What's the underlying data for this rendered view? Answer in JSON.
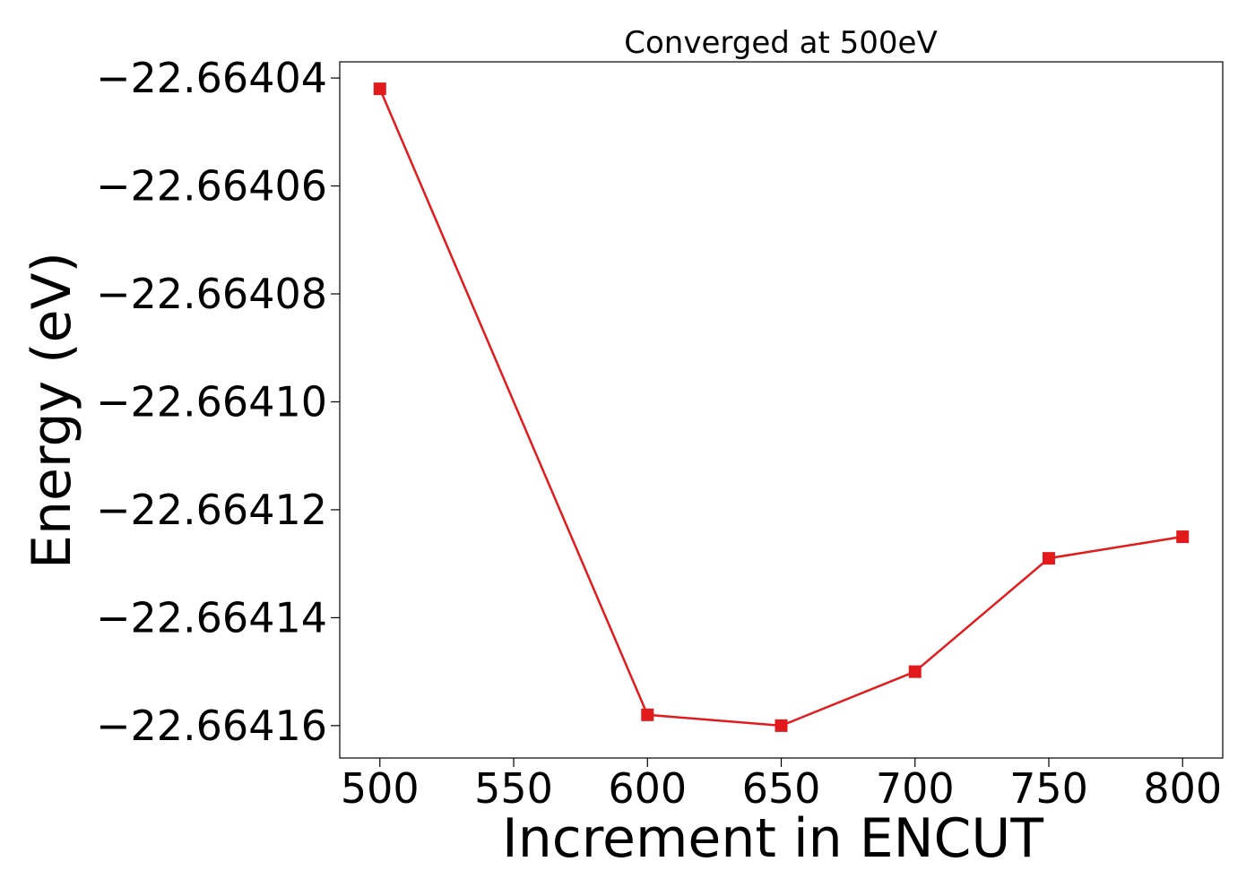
{
  "chart_data": {
    "type": "line",
    "title": "Converged at 500eV",
    "xlabel": "Increment in ENCUT",
    "ylabel": "Energy (eV)",
    "x": [
      500,
      600,
      650,
      700,
      750,
      800
    ],
    "series": [
      {
        "color": "#e31a1c",
        "marker": "square",
        "values": [
          -22.664042,
          -22.664158,
          -22.66416,
          -22.66415,
          -22.664129,
          -22.664125
        ]
      }
    ],
    "xlim": [
      485,
      815
    ],
    "ylim": [
      -22.664166,
      -22.664037
    ],
    "xticks": [
      500,
      550,
      600,
      650,
      700,
      750,
      800
    ],
    "xtick_labels": [
      "500",
      "550",
      "600",
      "650",
      "700",
      "750",
      "800"
    ],
    "yticks": [
      -22.66404,
      -22.66406,
      -22.66408,
      -22.6641,
      -22.66412,
      -22.66414,
      -22.66416
    ],
    "ytick_labels": [
      "−22.66404",
      "−22.66406",
      "−22.66408",
      "−22.66410",
      "−22.66412",
      "−22.66414",
      "−22.66416"
    ],
    "grid": false,
    "legend": "none"
  }
}
